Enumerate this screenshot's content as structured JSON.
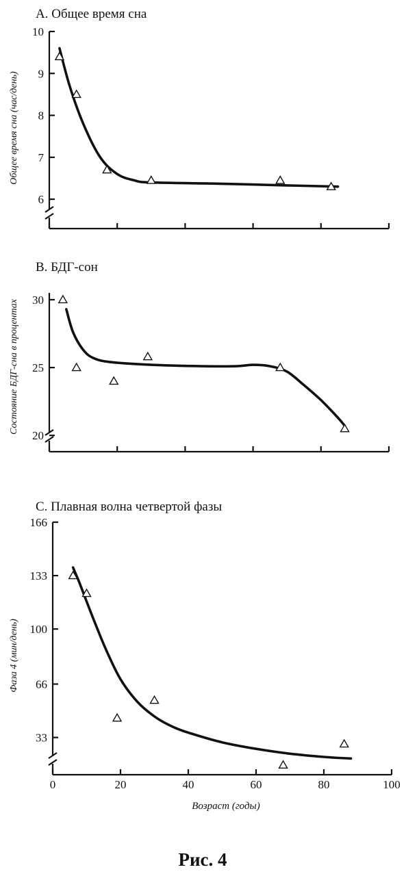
{
  "caption": "Рис. 4",
  "chart_data": [
    {
      "type": "scatter",
      "title": "A. Общее время сна",
      "xlabel": "",
      "ylabel": "Общее время сна (час/день)",
      "xlim": [
        0,
        100
      ],
      "ylim": [
        5.3,
        10
      ],
      "xticks": [
        0,
        20,
        40,
        60,
        80,
        100
      ],
      "yticks": [
        6,
        7,
        8,
        9,
        10
      ],
      "yticklabels": [
        "6",
        "7",
        "8",
        "9",
        "10"
      ],
      "axis_break": true,
      "points": [
        [
          3,
          9.4
        ],
        [
          8,
          8.5
        ],
        [
          17,
          6.7
        ],
        [
          30,
          6.45
        ],
        [
          68,
          6.45
        ],
        [
          83,
          6.3
        ]
      ],
      "fit_curve": [
        [
          3,
          9.6
        ],
        [
          6,
          8.7
        ],
        [
          10,
          7.8
        ],
        [
          15,
          7.0
        ],
        [
          20,
          6.6
        ],
        [
          25,
          6.45
        ],
        [
          30,
          6.4
        ],
        [
          50,
          6.37
        ],
        [
          70,
          6.33
        ],
        [
          85,
          6.3
        ]
      ]
    },
    {
      "type": "scatter",
      "title": "B. БДГ-сон",
      "xlabel": "",
      "ylabel": "Состояние БДГ-сна в процентах",
      "xlim": [
        0,
        100
      ],
      "ylim": [
        18.8,
        30.5
      ],
      "xticks": [
        0,
        20,
        40,
        60,
        80,
        100
      ],
      "yticks": [
        20,
        25,
        30
      ],
      "yticklabels": [
        "20",
        "25",
        "30"
      ],
      "axis_break": true,
      "points": [
        [
          4,
          30
        ],
        [
          8,
          25
        ],
        [
          19,
          24
        ],
        [
          29,
          25.8
        ],
        [
          68,
          25
        ],
        [
          87,
          20.5
        ]
      ],
      "fit_curve": [
        [
          5,
          29.3
        ],
        [
          7,
          27.6
        ],
        [
          10,
          26.3
        ],
        [
          13,
          25.7
        ],
        [
          18,
          25.4
        ],
        [
          30,
          25.2
        ],
        [
          45,
          25.1
        ],
        [
          55,
          25.1
        ],
        [
          60,
          25.2
        ],
        [
          65,
          25.1
        ],
        [
          70,
          24.7
        ],
        [
          75,
          23.7
        ],
        [
          80,
          22.6
        ],
        [
          85,
          21.3
        ],
        [
          87,
          20.7
        ]
      ]
    },
    {
      "type": "scatter",
      "title": "C. Плавная волна четвертой фазы",
      "xlabel": "Возраст (годы)",
      "ylabel": "Фаза 4 (мин/день)",
      "xlim": [
        0,
        100
      ],
      "ylim": [
        10,
        166
      ],
      "xticks": [
        0,
        20,
        40,
        60,
        80,
        100
      ],
      "xticklabels": [
        "0",
        "20",
        "40",
        "60",
        "80",
        "100"
      ],
      "yticks": [
        33,
        66,
        100,
        133,
        166
      ],
      "yticklabels": [
        "33",
        "66",
        "100",
        "133",
        "166"
      ],
      "axis_break": true,
      "points": [
        [
          6,
          133
        ],
        [
          10,
          122
        ],
        [
          19,
          45
        ],
        [
          30,
          56
        ],
        [
          68,
          16
        ],
        [
          86,
          29
        ]
      ],
      "fit_curve": [
        [
          6,
          138
        ],
        [
          8,
          128
        ],
        [
          10,
          117
        ],
        [
          13,
          101
        ],
        [
          16,
          86
        ],
        [
          20,
          69
        ],
        [
          25,
          55
        ],
        [
          30,
          46
        ],
        [
          35,
          40
        ],
        [
          40,
          36
        ],
        [
          50,
          30
        ],
        [
          60,
          26
        ],
        [
          70,
          23
        ],
        [
          80,
          21
        ],
        [
          88,
          20
        ]
      ]
    }
  ]
}
